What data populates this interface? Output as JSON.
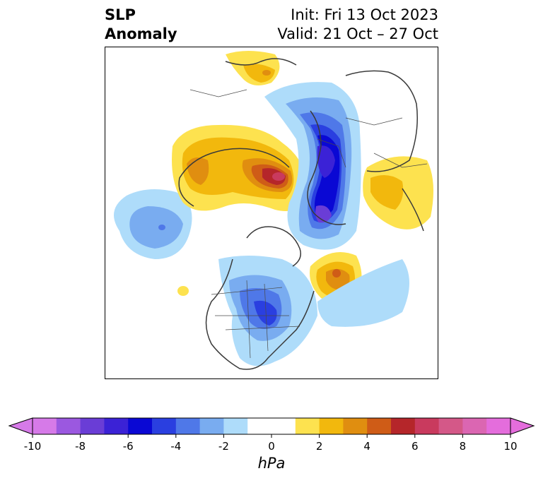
{
  "title": {
    "left_line1": "SLP",
    "left_line2": "Anomaly",
    "right_line1": "Init: Fri 13 Oct 2023",
    "right_line2": "Valid: 21 Oct – 27 Oct"
  },
  "colorbar": {
    "units": "hPa",
    "ticks": [
      "-10",
      "-8",
      "-6",
      "-4",
      "-2",
      "0",
      "2",
      "4",
      "6",
      "8",
      "10"
    ],
    "colors": [
      "#d67ae8",
      "#9b58e0",
      "#6a3dd6",
      "#3b22d6",
      "#0a08d4",
      "#2a3fe0",
      "#4f78e8",
      "#79acf0",
      "#aedcfa",
      "#ffffff",
      "#ffffff",
      "#fde24f",
      "#f2b80d",
      "#e08e10",
      "#cf5c17",
      "#b5262a",
      "#c93a5e",
      "#d45888",
      "#db66b2",
      "#e46ddc"
    ],
    "under_color": "#d67ae8",
    "over_color": "#e46ddc"
  },
  "map": {
    "projection": "north-polar-stereographic",
    "variable": "SLP anomaly"
  }
}
